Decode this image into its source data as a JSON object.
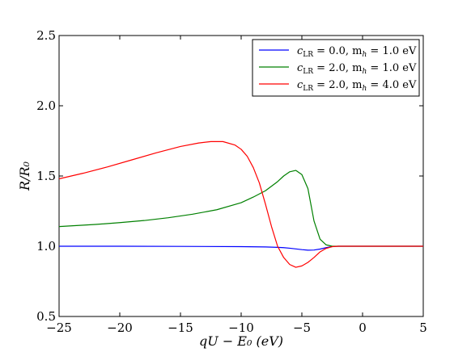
{
  "chart_data": {
    "type": "line",
    "xlabel": "qU − E₀ (eV)",
    "ylabel": "R/R₀",
    "xlim": [
      -25,
      5
    ],
    "ylim": [
      0.5,
      2.5
    ],
    "x_ticks": [
      -25,
      -20,
      -15,
      -10,
      -5,
      0,
      5
    ],
    "x_tick_labels": [
      "−25",
      "−20",
      "−15",
      "−10",
      "−5",
      "0",
      "5"
    ],
    "y_ticks": [
      0.5,
      1.0,
      1.5,
      2.0,
      2.5
    ],
    "y_tick_labels": [
      "0.5",
      "1.0",
      "1.5",
      "2.0",
      "2.5"
    ],
    "grid": false,
    "legend_position": "top-right",
    "series": [
      {
        "name": "c_LR = 0.0, m_h = 1.0 eV",
        "legend_main": "c",
        "legend_sub": "LR",
        "legend_mid": " = 0.0, m",
        "legend_sub2": "h",
        "legend_end": " = 1.0 eV",
        "color": "#0000ff",
        "x": [
          -25,
          -20,
          -15,
          -10,
          -8,
          -7,
          -6.5,
          -6,
          -5.5,
          -5,
          -4.5,
          -4,
          -3.5,
          -3,
          -2.5,
          -2,
          0,
          5
        ],
        "y": [
          1.0,
          1.0,
          0.999,
          0.997,
          0.995,
          0.992,
          0.99,
          0.986,
          0.981,
          0.976,
          0.972,
          0.973,
          0.98,
          0.99,
          0.998,
          1.0,
          1.0,
          1.0
        ]
      },
      {
        "name": "c_LR = 2.0, m_h = 1.0 eV",
        "legend_main": "c",
        "legend_sub": "LR",
        "legend_mid": " = 2.0, m",
        "legend_sub2": "h",
        "legend_end": " = 1.0 eV",
        "color": "#008000",
        "x": [
          -25,
          -22,
          -20,
          -18,
          -16,
          -14,
          -12,
          -10,
          -9,
          -8,
          -7,
          -6.5,
          -6,
          -5.5,
          -5,
          -4.5,
          -4,
          -3.5,
          -3,
          -2.5,
          -2,
          0,
          5
        ],
        "y": [
          1.14,
          1.155,
          1.168,
          1.183,
          1.203,
          1.228,
          1.26,
          1.31,
          1.35,
          1.395,
          1.46,
          1.5,
          1.53,
          1.54,
          1.51,
          1.41,
          1.18,
          1.05,
          1.01,
          1.0,
          1.0,
          1.0,
          1.0
        ]
      },
      {
        "name": "c_LR = 2.0, m_h = 4.0 eV",
        "legend_main": "c",
        "legend_sub": "LR",
        "legend_mid": " = 2.0, m",
        "legend_sub2": "h",
        "legend_end": " = 4.0 eV",
        "color": "#ff0000",
        "x": [
          -25,
          -23,
          -21,
          -19,
          -17,
          -15,
          -13.5,
          -12.5,
          -11.5,
          -10.5,
          -10,
          -9.5,
          -9,
          -8.5,
          -8,
          -7.5,
          -7,
          -6.5,
          -6,
          -5.5,
          -5,
          -4.5,
          -4,
          -3.5,
          -3,
          -2.5,
          -2,
          0,
          5
        ],
        "y": [
          1.48,
          1.52,
          1.565,
          1.615,
          1.665,
          1.71,
          1.735,
          1.745,
          1.745,
          1.72,
          1.69,
          1.64,
          1.56,
          1.45,
          1.3,
          1.14,
          1.0,
          0.92,
          0.87,
          0.85,
          0.86,
          0.885,
          0.92,
          0.96,
          0.985,
          0.997,
          1.0,
          1.0,
          1.0
        ]
      }
    ]
  }
}
